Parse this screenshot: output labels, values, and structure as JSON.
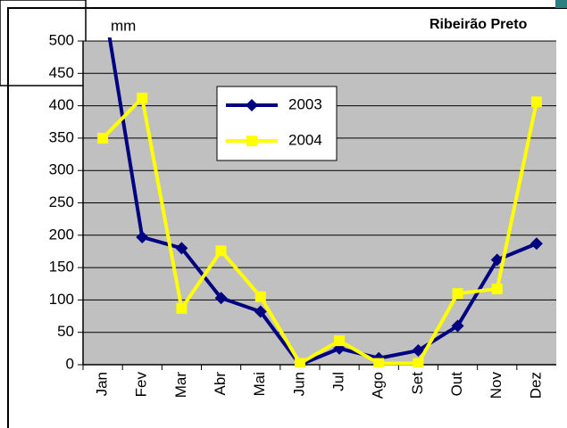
{
  "chart_data": {
    "type": "line",
    "title": "Ribeirão Preto",
    "y_label": "mm",
    "categories": [
      "Jan",
      "Fev",
      "Mar",
      "Abr",
      "Mai",
      "Jun",
      "Jul",
      "Ago",
      "Set",
      "Out",
      "Nov",
      "Dez"
    ],
    "series": [
      {
        "name": "2003",
        "color": "#000080",
        "marker": "diamond",
        "values": [
          570,
          197,
          180,
          103,
          82,
          0,
          25,
          10,
          22,
          60,
          162,
          187
        ]
      },
      {
        "name": "2004",
        "color": "#ffff00",
        "marker": "square",
        "values": [
          350,
          412,
          87,
          176,
          105,
          2,
          37,
          2,
          2,
          110,
          117,
          406
        ]
      }
    ],
    "ylim": [
      0,
      500
    ],
    "yticks": [
      0,
      50,
      100,
      150,
      200,
      250,
      300,
      350,
      400,
      450,
      500
    ],
    "grid": true,
    "plot_background": "#c0c0c0",
    "legend_position": "top-center"
  }
}
